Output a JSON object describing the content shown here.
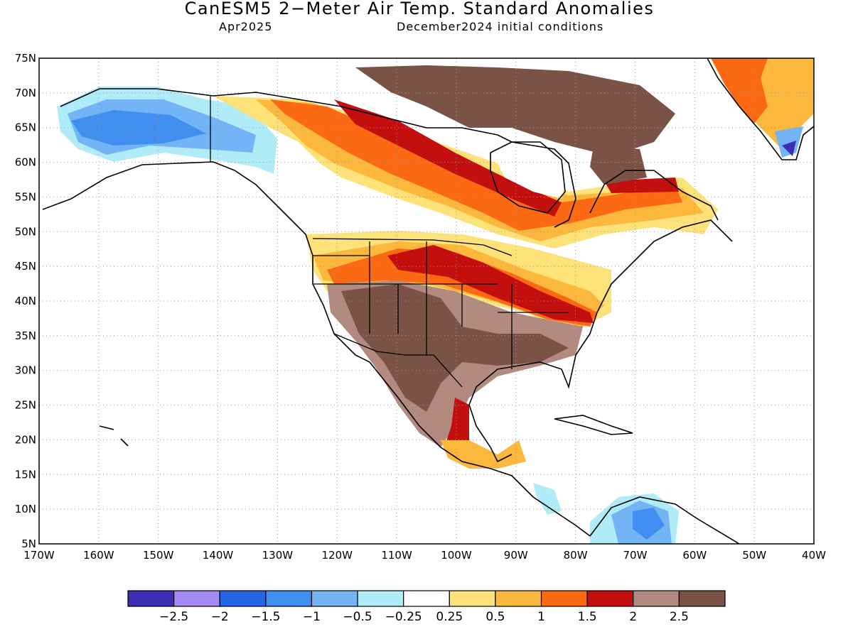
{
  "header": {
    "title": "CanESM5 2−Meter Air Temp. Standard Anomalies",
    "valid_month": "Apr2025",
    "init_conditions": "December2024 initial conditions"
  },
  "map": {
    "lat_labels": [
      "75N",
      "70N",
      "65N",
      "60N",
      "55N",
      "50N",
      "45N",
      "40N",
      "35N",
      "30N",
      "25N",
      "20N",
      "15N",
      "10N",
      "5N"
    ],
    "lon_labels": [
      "170W",
      "160W",
      "150W",
      "140W",
      "130W",
      "120W",
      "110W",
      "100W",
      "90W",
      "80W",
      "70W",
      "60W",
      "50W",
      "40W"
    ],
    "lat_range": [
      5,
      75
    ],
    "lon_range": [
      -170,
      -40
    ],
    "grid": "dotted"
  },
  "colorbar": {
    "colors": [
      "#3d2fb5",
      "#a48af5",
      "#2266e6",
      "#3f8ef0",
      "#72b4f5",
      "#b0ecf7",
      "#ffffff",
      "#fde27a",
      "#fbb83c",
      "#fb6a12",
      "#c40f0f",
      "#b38a80",
      "#7a5246"
    ],
    "tick_labels": [
      "−2.5",
      "−2",
      "−1.5",
      "−1",
      "−0.5",
      "−0.25",
      "0.25",
      "0.5",
      "1",
      "1.5",
      "2",
      "2.5"
    ]
  }
}
